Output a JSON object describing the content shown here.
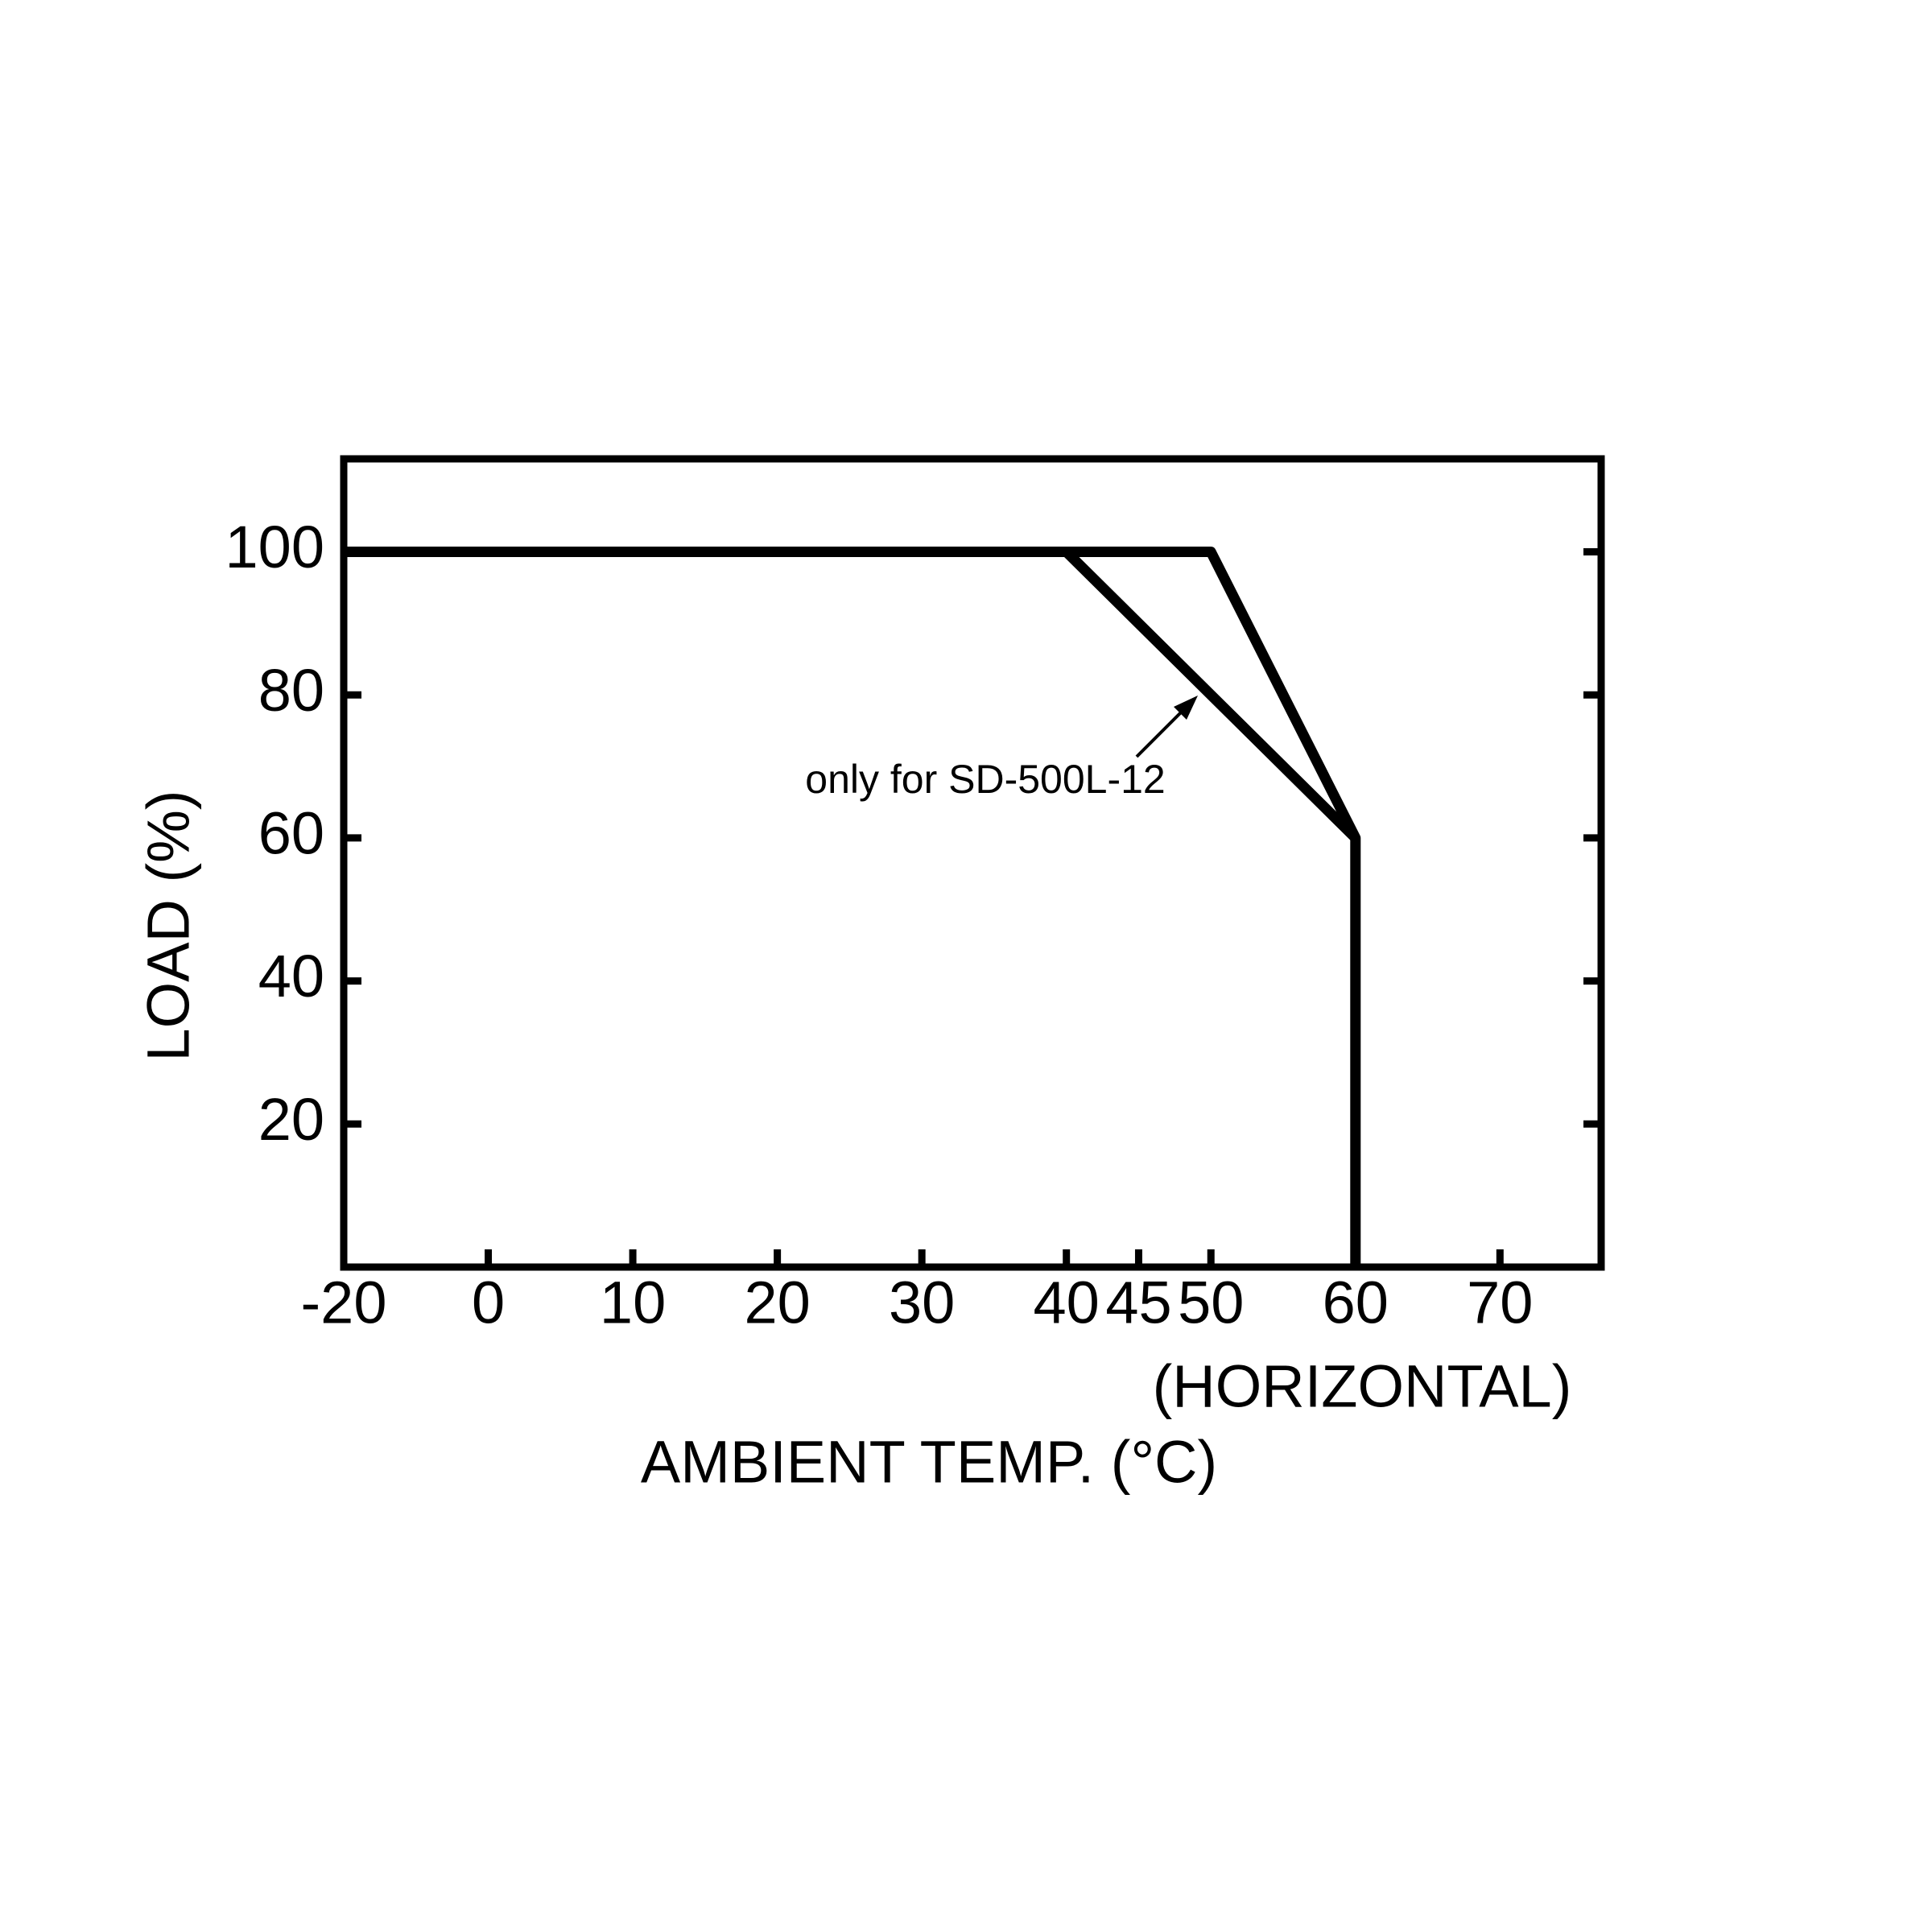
{
  "chart_data": {
    "type": "line",
    "x_label": "AMBIENT TEMP. (°C)",
    "x_sublabel": "(HORIZONTAL)",
    "y_label": "LOAD (%)",
    "annotation": "only for SD-500L-12",
    "series": [
      {
        "color": "#000000",
        "x": [
          -20,
          50,
          60,
          60
        ],
        "values": [
          100,
          100,
          60,
          0
        ]
      },
      {
        "color": "#000000",
        "x": [
          40,
          60
        ],
        "values": [
          100,
          60
        ]
      }
    ],
    "xlim": [
      -20,
      77
    ],
    "ylim": [
      0,
      113
    ],
    "xticks": [
      -20,
      0,
      10,
      20,
      30,
      40,
      45,
      50,
      60,
      70
    ],
    "yticks": [
      20,
      40,
      60,
      80,
      100
    ]
  }
}
